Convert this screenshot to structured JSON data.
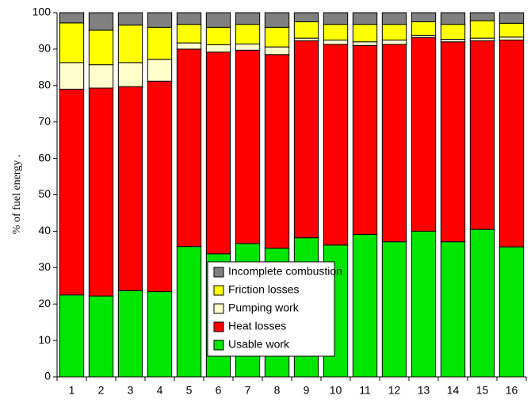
{
  "chart_data": {
    "type": "stacked_bar",
    "ylabel": "% of fuel energy .",
    "categories": [
      "1",
      "2",
      "3",
      "4",
      "5",
      "6",
      "7",
      "8",
      "9",
      "10",
      "11",
      "12",
      "13",
      "14",
      "15",
      "16"
    ],
    "series": [
      {
        "name": "Usable work",
        "color": "#00e600",
        "values": [
          22.5,
          22.2,
          23.7,
          23.4,
          35.8,
          33.8,
          36.6,
          35.3,
          38.2,
          36.2,
          39.1,
          37.1,
          40.0,
          37.1,
          40.5,
          35.7
        ]
      },
      {
        "name": "Heat losses",
        "color": "#ff0000",
        "values": [
          56.5,
          57.1,
          56.0,
          57.8,
          54.2,
          55.4,
          53.1,
          53.2,
          54.1,
          55.1,
          51.9,
          54.2,
          53.2,
          54.9,
          51.8,
          56.8
        ]
      },
      {
        "name": "Pumping work",
        "color": "#ffffcc",
        "values": [
          7.3,
          6.4,
          6.6,
          6.0,
          1.7,
          2.0,
          1.7,
          2.1,
          0.7,
          1.2,
          1.0,
          1.2,
          0.6,
          0.7,
          0.7,
          0.8
        ]
      },
      {
        "name": "Friction losses",
        "color": "#ffff00",
        "values": [
          10.9,
          9.5,
          10.3,
          8.8,
          5.1,
          4.8,
          5.4,
          5.4,
          4.5,
          4.3,
          4.8,
          4.3,
          3.7,
          4.1,
          4.8,
          3.8
        ]
      },
      {
        "name": "Incomplete combustion",
        "color": "#808080",
        "values": [
          2.8,
          4.8,
          3.4,
          4.0,
          3.2,
          4.0,
          3.2,
          4.0,
          2.5,
          3.2,
          3.2,
          3.2,
          2.5,
          3.2,
          2.2,
          2.9
        ]
      }
    ],
    "ylim": [
      0,
      100
    ],
    "yticks": [
      0,
      10,
      20,
      30,
      40,
      50,
      60,
      70,
      80,
      90,
      100
    ],
    "grid": false
  }
}
